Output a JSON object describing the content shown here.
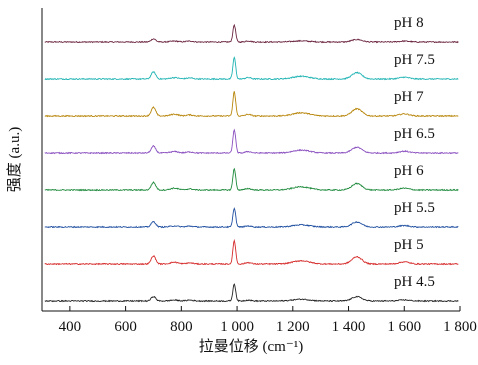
{
  "chart_data": {
    "type": "line",
    "title": "",
    "xlabel": "拉曼位移 (cm⁻¹)",
    "ylabel": "强度 (a.u.)",
    "xlim": [
      300,
      1800
    ],
    "x_ticks": [
      400,
      600,
      800,
      1000,
      1200,
      1400,
      1600,
      1800
    ],
    "x_tick_labels": [
      "400",
      "600",
      "800",
      "1 000",
      "1 200",
      "1 400",
      "1 600",
      "1 800"
    ],
    "y_ticks_shown": false,
    "grid": false,
    "legend": "labels at right end of each trace",
    "layout": "stacked offset spectra",
    "peaks_cm1": [
      700,
      775,
      830,
      990,
      1040,
      1230,
      1430,
      1600
    ],
    "series": [
      {
        "name": "pH 8",
        "color": "#6b2540",
        "peak_heights": [
          0.18,
          0.05,
          0.05,
          0.95,
          0.06,
          0.06,
          0.14,
          0.05
        ]
      },
      {
        "name": "pH 7.5",
        "color": "#1fb3b3",
        "peak_heights": [
          0.4,
          0.08,
          0.06,
          1.2,
          0.08,
          0.15,
          0.35,
          0.1
        ]
      },
      {
        "name": "pH 7",
        "color": "#b8860b",
        "peak_heights": [
          0.48,
          0.1,
          0.06,
          1.35,
          0.09,
          0.18,
          0.4,
          0.12
        ]
      },
      {
        "name": "pH 6.5",
        "color": "#8a4fbf",
        "peak_heights": [
          0.38,
          0.08,
          0.06,
          1.3,
          0.08,
          0.16,
          0.32,
          0.1
        ]
      },
      {
        "name": "pH 6",
        "color": "#1e8a3c",
        "peak_heights": [
          0.42,
          0.1,
          0.06,
          1.2,
          0.08,
          0.18,
          0.36,
          0.1
        ]
      },
      {
        "name": "pH 5.5",
        "color": "#1f4fa0",
        "peak_heights": [
          0.3,
          0.06,
          0.05,
          1.05,
          0.06,
          0.12,
          0.28,
          0.08
        ]
      },
      {
        "name": "pH 5",
        "color": "#d62a2a",
        "peak_heights": [
          0.45,
          0.1,
          0.06,
          1.3,
          0.08,
          0.18,
          0.4,
          0.12
        ]
      },
      {
        "name": "pH 4.5",
        "color": "#222222",
        "peak_heights": [
          0.25,
          0.05,
          0.05,
          0.95,
          0.05,
          0.1,
          0.24,
          0.06
        ]
      }
    ]
  }
}
